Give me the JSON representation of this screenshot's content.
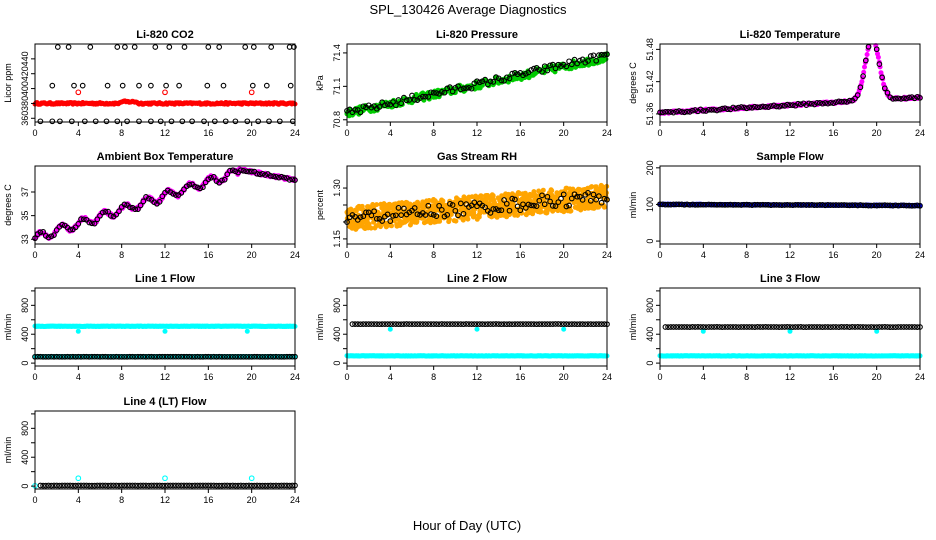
{
  "figure": {
    "title": "SPL_130426  Average Diagnostics",
    "xlabel": "Hour of Day (UTC)"
  },
  "colors": {
    "black": "#000000",
    "red": "#ff0000",
    "green": "#00cc00",
    "magenta": "#ff00ff",
    "orange": "#ffa500",
    "blue": "#0000ff",
    "cyan": "#00ffff"
  },
  "chart_data": [
    {
      "id": "co2",
      "type": "scatter",
      "title": "Li-820 CO2",
      "ylabel": "Licor ppm",
      "xlim": [
        0,
        24
      ],
      "xticks": [
        0,
        4,
        8,
        12,
        16,
        20,
        24
      ],
      "ylim": [
        355,
        460
      ],
      "yticks": [
        360,
        380,
        400,
        420,
        440
      ],
      "ytick_labels": [
        "360",
        "380",
        "400",
        "420",
        "440"
      ],
      "series": [
        {
          "name": "CO2 avg",
          "color": "red",
          "marker": "dot",
          "model": "flat",
          "params": {
            "base": 380,
            "noise": 1.2,
            "step": 0.1,
            "bump_at": [
              8.6,
              2.2
            ]
          }
        },
        {
          "name": "CO2 levels",
          "color": "black",
          "marker": "ring",
          "model": "levels",
          "levels": [
            356,
            404,
            456
          ],
          "x_lists": [
            [
              0.5,
              1.6,
              2.3,
              3.4,
              4.6,
              5.6,
              6.6,
              7.6,
              8.5,
              9.6,
              10.7,
              11.6,
              12.6,
              13.6,
              14.5,
              15.6,
              16.6,
              17.6,
              18.5,
              19.6,
              20.6,
              21.6,
              22.6,
              23.8
            ],
            [
              1.6,
              3.6,
              4.4,
              6.7,
              8.1,
              9.6,
              10.7,
              12.1,
              13.3,
              15.9,
              17.4,
              20.1,
              21.4,
              23.6
            ],
            [
              2.1,
              3.1,
              5.1,
              7.6,
              8.3,
              9.2,
              11.1,
              12.4,
              13.8,
              16.0,
              17.0,
              19.4,
              20.2,
              21.8,
              23.5,
              23.9
            ]
          ]
        },
        {
          "name": "CO2 markers",
          "color": "red",
          "marker": "ring",
          "x": [
            4,
            12,
            20
          ],
          "y": [
            395,
            395,
            395
          ]
        }
      ]
    },
    {
      "id": "pressure",
      "type": "scatter",
      "title": "Li-820 Pressure",
      "ylabel": "kPa",
      "xlim": [
        0,
        24
      ],
      "xticks": [
        0,
        4,
        8,
        12,
        16,
        20,
        24
      ],
      "ylim": [
        70.78,
        71.48
      ],
      "yticks": [
        70.8,
        71.1,
        71.4
      ],
      "ytick_labels": [
        "70.8",
        "71.1",
        "71.4"
      ],
      "series": [
        {
          "name": "Pressure 1s",
          "color": "green",
          "marker": "dot",
          "model": "linear",
          "params": {
            "start": 70.86,
            "end": 71.36,
            "noise": 0.035,
            "step": 0.1
          }
        },
        {
          "name": "Pressure avg",
          "color": "black",
          "marker": "ring",
          "model": "linear",
          "params": {
            "start": 70.86,
            "end": 71.38,
            "noise": 0.03,
            "step": 0.25
          }
        }
      ]
    },
    {
      "id": "temperature",
      "type": "scatter",
      "title": "Li-820 Temperature",
      "ylabel": "degrees C",
      "xlim": [
        0,
        24
      ],
      "xticks": [
        0,
        4,
        8,
        12,
        16,
        20,
        24
      ],
      "ylim": [
        51.345,
        51.49
      ],
      "yticks": [
        51.36,
        51.42,
        51.48
      ],
      "ytick_labels": [
        "51.36",
        "51.42",
        "51.48"
      ],
      "series": [
        {
          "name": "Temp 1s",
          "color": "magenta",
          "marker": "dot",
          "model": "peak",
          "params": {
            "start": 51.362,
            "slope": 0.0012,
            "peak_x": 19.6,
            "peak_h": 0.115,
            "width": 0.9,
            "noise": 0.002,
            "step": 0.08
          }
        },
        {
          "name": "Temp avg",
          "color": "black",
          "marker": "ring",
          "model": "peak",
          "params": {
            "start": 51.362,
            "slope": 0.0012,
            "peak_x": 19.6,
            "peak_h": 0.115,
            "width": 0.9,
            "noise": 0.002,
            "step": 0.25
          }
        }
      ]
    },
    {
      "id": "ambient",
      "type": "scatter",
      "title": "Ambient Box Temperature",
      "ylabel": "degrees C",
      "xlim": [
        0,
        24
      ],
      "xticks": [
        0,
        4,
        8,
        12,
        16,
        20,
        24
      ],
      "ylim": [
        32.6,
        39.2
      ],
      "yticks": [
        33,
        35,
        37
      ],
      "ytick_labels": [
        "33",
        "35",
        "37"
      ],
      "series": [
        {
          "name": "Ambient 1s",
          "color": "magenta",
          "marker": "dot",
          "model": "ambient",
          "params": {
            "noise": 0.12,
            "step": 0.08
          }
        },
        {
          "name": "Ambient avg",
          "color": "black",
          "marker": "ring",
          "model": "ambient",
          "params": {
            "noise": 0.1,
            "step": 0.25
          }
        }
      ]
    },
    {
      "id": "rh",
      "type": "scatter",
      "title": "Gas Stream RH",
      "ylabel": "percent",
      "xlim": [
        0,
        24
      ],
      "xticks": [
        0,
        4,
        8,
        12,
        16,
        20,
        24
      ],
      "ylim": [
        1.135,
        1.365
      ],
      "yticks": [
        1.15,
        1.2,
        1.25,
        1.3
      ],
      "ytick_labels": [
        "1.15",
        "",
        "",
        "1.30"
      ],
      "series": [
        {
          "name": "RH 1s",
          "color": "orange",
          "marker": "dot",
          "model": "linear",
          "params": {
            "start": 1.21,
            "end": 1.275,
            "noise": 0.035,
            "step": 0.03
          }
        },
        {
          "name": "RH avg",
          "color": "black",
          "marker": "ring",
          "model": "linear",
          "params": {
            "start": 1.21,
            "end": 1.275,
            "noise": 0.02,
            "step": 0.25
          }
        }
      ]
    },
    {
      "id": "sampleflow",
      "type": "scatter",
      "title": "Sample Flow",
      "ylabel": "ml/min",
      "xlim": [
        0,
        24
      ],
      "xticks": [
        0,
        4,
        8,
        12,
        16,
        20,
        24
      ],
      "ylim": [
        -8,
        205
      ],
      "yticks": [
        0,
        100,
        200
      ],
      "ytick_labels": [
        "0",
        "100",
        "200"
      ],
      "series": [
        {
          "name": "Sample 1s",
          "color": "blue",
          "marker": "dot",
          "model": "linear",
          "params": {
            "start": 100,
            "end": 97,
            "noise": 1,
            "step": 0.1
          }
        },
        {
          "name": "Sample avg",
          "color": "black",
          "marker": "ring",
          "model": "linear",
          "params": {
            "start": 100,
            "end": 97,
            "noise": 0.8,
            "step": 0.25
          }
        }
      ]
    },
    {
      "id": "line1",
      "type": "scatter",
      "title": "Line 1 Flow",
      "ylabel": "ml/min",
      "xlim": [
        0,
        24
      ],
      "xticks": [
        0,
        4,
        8,
        12,
        16,
        20,
        24
      ],
      "ylim": [
        -40,
        1040
      ],
      "yticks": [
        0,
        200,
        400,
        600,
        800,
        1000
      ],
      "ytick_labels": [
        "0",
        "",
        "400",
        "",
        "800",
        ""
      ],
      "series": [
        {
          "name": "Line 1 high",
          "color": "cyan",
          "marker": "dot",
          "model": "flat",
          "params": {
            "base": 510,
            "noise": 3,
            "step": 0.08,
            "dips": [
              4,
              12,
              19.6
            ],
            "dip_to": 440
          }
        },
        {
          "name": "Line 1 low",
          "color": "cyan",
          "marker": "dot",
          "model": "flat",
          "params": {
            "base": 90,
            "noise": 2,
            "step": 0.08
          }
        },
        {
          "name": "Line 1 avg",
          "color": "black",
          "marker": "ring",
          "model": "flat",
          "params": {
            "base": 88,
            "noise": 1,
            "step": 0.25
          }
        }
      ]
    },
    {
      "id": "line2",
      "type": "scatter",
      "title": "Line 2 Flow",
      "ylabel": "ml/min",
      "xlim": [
        0,
        24
      ],
      "xticks": [
        0,
        4,
        8,
        12,
        16,
        20,
        24
      ],
      "ylim": [
        -40,
        1040
      ],
      "yticks": [
        0,
        200,
        400,
        600,
        800,
        1000
      ],
      "ytick_labels": [
        "0",
        "",
        "400",
        "",
        "800",
        ""
      ],
      "series": [
        {
          "name": "Line 2 low",
          "color": "cyan",
          "marker": "dot",
          "model": "flat",
          "params": {
            "base": 100,
            "noise": 3,
            "step": 0.08
          }
        },
        {
          "name": "Line 2 high",
          "color": "cyan",
          "marker": "dot",
          "model": "flat",
          "params": {
            "base": 540,
            "noise": 2,
            "step": 0.08,
            "range": [
              0,
              0.5
            ],
            "dips_only": [
              4,
              12,
              20
            ],
            "dip_to": 470
          }
        },
        {
          "name": "Line 2 avg",
          "color": "black",
          "marker": "ring",
          "model": "flat",
          "params": {
            "base": 540,
            "noise": 1,
            "step": 0.25,
            "range": [
              0.5,
              24
            ]
          }
        }
      ]
    },
    {
      "id": "line3",
      "type": "scatter",
      "title": "Line 3 Flow",
      "ylabel": "ml/min",
      "xlim": [
        0,
        24
      ],
      "xticks": [
        0,
        4,
        8,
        12,
        16,
        20,
        24
      ],
      "ylim": [
        -40,
        1040
      ],
      "yticks": [
        0,
        200,
        400,
        600,
        800,
        1000
      ],
      "ytick_labels": [
        "0",
        "",
        "400",
        "",
        "800",
        ""
      ],
      "series": [
        {
          "name": "Line 3 low",
          "color": "cyan",
          "marker": "dot",
          "model": "flat",
          "params": {
            "base": 100,
            "noise": 3,
            "step": 0.08
          }
        },
        {
          "name": "Line 3 high",
          "color": "cyan",
          "marker": "dot",
          "model": "flat",
          "params": {
            "base": 505,
            "noise": 2,
            "step": 0.08,
            "range": [
              0,
              0.5
            ],
            "dips_only": [
              4,
              12,
              20
            ],
            "dip_to": 440
          }
        },
        {
          "name": "Line 3 avg",
          "color": "black",
          "marker": "ring",
          "model": "flat",
          "params": {
            "base": 500,
            "noise": 1,
            "step": 0.25,
            "range": [
              0.5,
              24
            ]
          }
        }
      ]
    },
    {
      "id": "line4",
      "type": "scatter",
      "title": "Line 4 (LT) Flow",
      "ylabel": "ml/min",
      "xlim": [
        0,
        24
      ],
      "xticks": [
        0,
        4,
        8,
        12,
        16,
        20,
        24
      ],
      "ylim": [
        -40,
        1040
      ],
      "yticks": [
        0,
        200,
        400,
        600,
        800,
        1000
      ],
      "ytick_labels": [
        "0",
        "",
        "400",
        "",
        "800",
        ""
      ],
      "series": [
        {
          "name": "Line 4 spikes",
          "color": "cyan",
          "marker": "ring",
          "x": [
            0,
            4,
            12,
            20
          ],
          "y": [
            5,
            110,
            110,
            110
          ]
        },
        {
          "name": "Line 4 avg",
          "color": "black",
          "marker": "ring",
          "model": "flat",
          "params": {
            "base": 8,
            "noise": 1,
            "step": 0.25,
            "range": [
              0.5,
              24
            ]
          }
        }
      ]
    }
  ]
}
